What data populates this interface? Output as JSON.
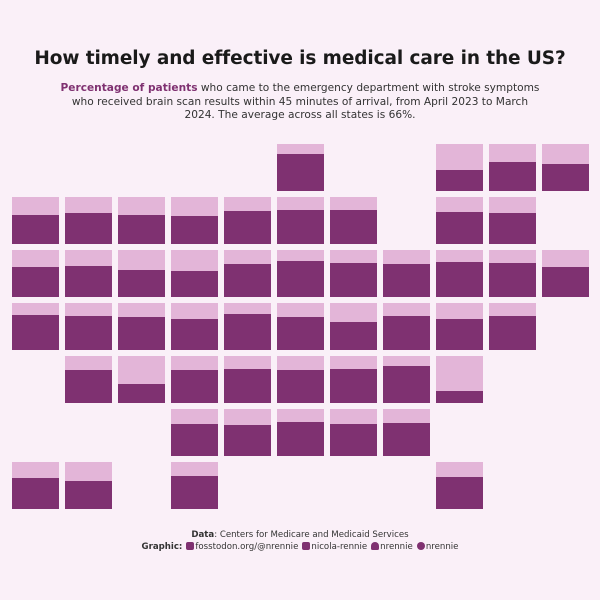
{
  "title": "How timely and effective is medical care in the US?",
  "subtitle": {
    "highlight": "Percentage of patients",
    "text": "who came to the emergency department with stroke symptoms who received brain scan results within 45 minutes of arrival, from April 2023 to March 2024.  The average across all states is 66%."
  },
  "caption": {
    "data_label": "Data",
    "data_text": ": Centers for Medicare and Medicaid Services",
    "graphic_label": "Graphic:",
    "links": [
      {
        "icon": "mastodon-icon",
        "text": "fosstodon.org/@nrennie"
      },
      {
        "icon": "linkedin-icon",
        "text": "nicola-rennie"
      },
      {
        "icon": "bluesky-icon",
        "text": "nrennie"
      },
      {
        "icon": "github-icon",
        "text": "nrennie"
      }
    ]
  },
  "colors": {
    "background": "#FAF0F8",
    "fill": "#7F3171",
    "empty": "#E3B5D8",
    "highlight": "#7F3171"
  },
  "chart_data": {
    "type": "tile-grid",
    "title": "How timely and effective is medical care in the US?",
    "ylim": [
      0,
      100
    ],
    "tiles": [
      {
        "row": 0,
        "col": 5,
        "value": 79
      },
      {
        "row": 0,
        "col": 8,
        "value": 45
      },
      {
        "row": 0,
        "col": 9,
        "value": 62
      },
      {
        "row": 0,
        "col": 10,
        "value": 57
      },
      {
        "row": 1,
        "col": 0,
        "value": 62
      },
      {
        "row": 1,
        "col": 1,
        "value": 66
      },
      {
        "row": 1,
        "col": 2,
        "value": 62
      },
      {
        "row": 1,
        "col": 3,
        "value": 60
      },
      {
        "row": 1,
        "col": 4,
        "value": 70
      },
      {
        "row": 1,
        "col": 5,
        "value": 72
      },
      {
        "row": 1,
        "col": 6,
        "value": 72
      },
      {
        "row": 1,
        "col": 8,
        "value": 68
      },
      {
        "row": 1,
        "col": 9,
        "value": 66
      },
      {
        "row": 2,
        "col": 0,
        "value": 64
      },
      {
        "row": 2,
        "col": 1,
        "value": 66
      },
      {
        "row": 2,
        "col": 2,
        "value": 57
      },
      {
        "row": 2,
        "col": 3,
        "value": 55
      },
      {
        "row": 2,
        "col": 4,
        "value": 70
      },
      {
        "row": 2,
        "col": 5,
        "value": 77
      },
      {
        "row": 2,
        "col": 6,
        "value": 72
      },
      {
        "row": 2,
        "col": 7,
        "value": 70
      },
      {
        "row": 2,
        "col": 8,
        "value": 74
      },
      {
        "row": 2,
        "col": 9,
        "value": 72
      },
      {
        "row": 2,
        "col": 10,
        "value": 64
      },
      {
        "row": 3,
        "col": 0,
        "value": 74
      },
      {
        "row": 3,
        "col": 1,
        "value": 72
      },
      {
        "row": 3,
        "col": 2,
        "value": 70
      },
      {
        "row": 3,
        "col": 3,
        "value": 66
      },
      {
        "row": 3,
        "col": 4,
        "value": 77
      },
      {
        "row": 3,
        "col": 5,
        "value": 70
      },
      {
        "row": 3,
        "col": 6,
        "value": 60
      },
      {
        "row": 3,
        "col": 7,
        "value": 72
      },
      {
        "row": 3,
        "col": 8,
        "value": 66
      },
      {
        "row": 3,
        "col": 9,
        "value": 72
      },
      {
        "row": 4,
        "col": 1,
        "value": 70
      },
      {
        "row": 4,
        "col": 2,
        "value": 40
      },
      {
        "row": 4,
        "col": 3,
        "value": 70
      },
      {
        "row": 4,
        "col": 4,
        "value": 72
      },
      {
        "row": 4,
        "col": 5,
        "value": 70
      },
      {
        "row": 4,
        "col": 6,
        "value": 72
      },
      {
        "row": 4,
        "col": 7,
        "value": 79
      },
      {
        "row": 4,
        "col": 8,
        "value": 26
      },
      {
        "row": 5,
        "col": 3,
        "value": 68
      },
      {
        "row": 5,
        "col": 4,
        "value": 66
      },
      {
        "row": 5,
        "col": 5,
        "value": 72
      },
      {
        "row": 5,
        "col": 6,
        "value": 68
      },
      {
        "row": 5,
        "col": 7,
        "value": 70
      },
      {
        "row": 6,
        "col": 0,
        "value": 66
      },
      {
        "row": 6,
        "col": 1,
        "value": 60
      },
      {
        "row": 6,
        "col": 3,
        "value": 70
      },
      {
        "row": 6,
        "col": 8,
        "value": 68
      }
    ]
  }
}
